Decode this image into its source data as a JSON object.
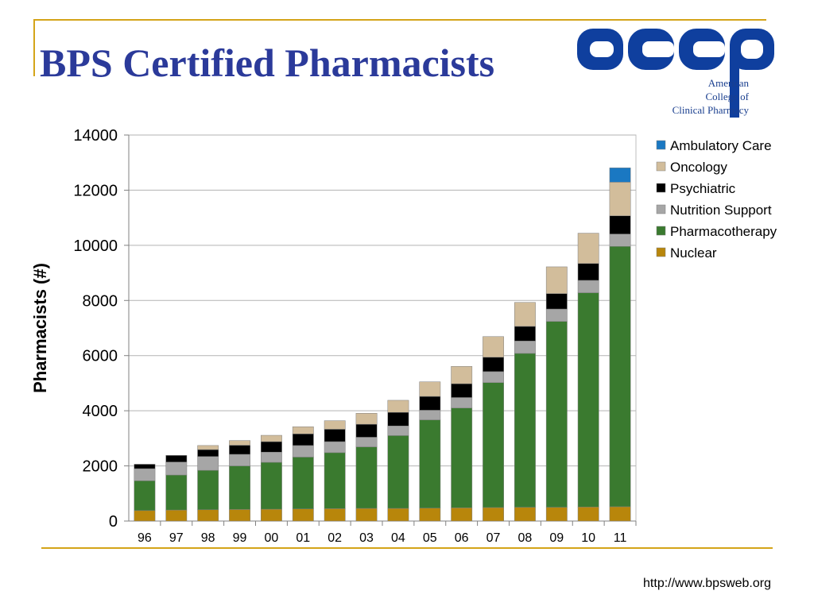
{
  "slide": {
    "title": "BPS Certified Pharmacists",
    "footer_url": "http://www.bpsweb.org"
  },
  "logo": {
    "wordmark": "accp",
    "line1": "American",
    "line2": "College of",
    "line3": "Clinical Pharmacy",
    "color": "#0f3f9e"
  },
  "chart_data": {
    "type": "bar",
    "stacked": true,
    "categories": [
      "96",
      "97",
      "98",
      "99",
      "00",
      "01",
      "02",
      "03",
      "04",
      "05",
      "06",
      "07",
      "08",
      "09",
      "10",
      "11"
    ],
    "ylabel": "Pharmacists (#)",
    "xlabel": "",
    "ylim": [
      0,
      14000
    ],
    "yticks": [
      0,
      2000,
      4000,
      6000,
      8000,
      10000,
      12000,
      14000
    ],
    "grid": true,
    "legend_position": "right",
    "series": [
      {
        "name": "Nuclear",
        "color": "#b8860b",
        "values": [
          380,
          400,
          410,
          420,
          430,
          440,
          450,
          460,
          460,
          470,
          480,
          490,
          500,
          500,
          510,
          520
        ]
      },
      {
        "name": "Pharmacotherapy",
        "color": "#3a7a2f",
        "values": [
          1080,
          1270,
          1430,
          1580,
          1700,
          1880,
          2030,
          2230,
          2640,
          3200,
          3620,
          4530,
          5580,
          6740,
          7770,
          9440
        ]
      },
      {
        "name": "Nutrition Support",
        "color": "#a6a6a6",
        "values": [
          440,
          470,
          500,
          420,
          370,
          420,
          400,
          350,
          350,
          350,
          380,
          400,
          450,
          450,
          450,
          450
        ]
      },
      {
        "name": "Psychiatric",
        "color": "#000000",
        "values": [
          160,
          240,
          250,
          330,
          380,
          420,
          450,
          470,
          490,
          500,
          500,
          520,
          530,
          560,
          610,
          660
        ]
      },
      {
        "name": "Oncology",
        "color": "#d2bd9b",
        "values": [
          0,
          0,
          150,
          170,
          230,
          260,
          310,
          400,
          440,
          530,
          630,
          750,
          870,
          970,
          1100,
          1220
        ]
      },
      {
        "name": "Ambulatory Care",
        "color": "#1a78c2",
        "values": [
          0,
          0,
          0,
          0,
          0,
          0,
          0,
          0,
          0,
          0,
          0,
          0,
          0,
          0,
          0,
          520
        ]
      }
    ]
  }
}
